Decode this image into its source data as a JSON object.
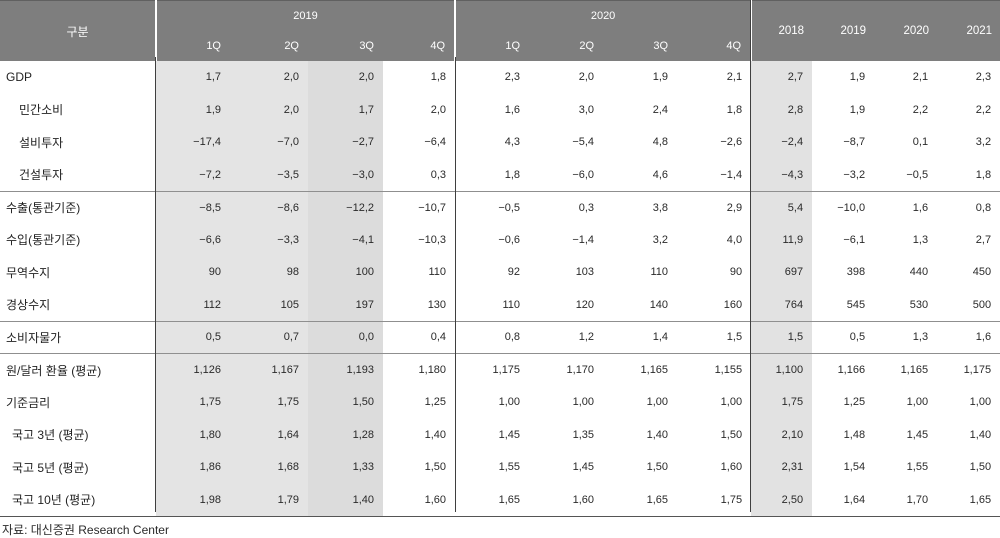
{
  "chart_data": {
    "type": "table",
    "header": {
      "corner": "구분",
      "group_2019": "2019",
      "group_2020": "2020",
      "quarters_2019": [
        "1Q",
        "2Q",
        "3Q",
        "4Q"
      ],
      "quarters_2020": [
        "1Q",
        "2Q",
        "3Q",
        "4Q"
      ],
      "annual_years": [
        "2018",
        "2019",
        "2020",
        "2021"
      ]
    },
    "rows": [
      {
        "label": "GDP",
        "indent": 0,
        "section_end": false,
        "q2019": [
          "1,7",
          "2,0",
          "2,0",
          "1,8"
        ],
        "q2020": [
          "2,3",
          "2,0",
          "1,9",
          "2,1"
        ],
        "annual": [
          "2,7",
          "1,9",
          "2,1",
          "2,3"
        ]
      },
      {
        "label": "민간소비",
        "indent": 1,
        "section_end": false,
        "q2019": [
          "1,9",
          "2,0",
          "1,7",
          "2,0"
        ],
        "q2020": [
          "1,6",
          "3,0",
          "2,4",
          "1,8"
        ],
        "annual": [
          "2,8",
          "1,9",
          "2,2",
          "2,2"
        ]
      },
      {
        "label": "설비투자",
        "indent": 1,
        "section_end": false,
        "q2019": [
          "−17,4",
          "−7,0",
          "−2,7",
          "−6,4"
        ],
        "q2020": [
          "4,3",
          "−5,4",
          "4,8",
          "−2,6"
        ],
        "annual": [
          "−2,4",
          "−8,7",
          "0,1",
          "3,2"
        ]
      },
      {
        "label": "건설투자",
        "indent": 1,
        "section_end": true,
        "q2019": [
          "−7,2",
          "−3,5",
          "−3,0",
          "0,3"
        ],
        "q2020": [
          "1,8",
          "−6,0",
          "4,6",
          "−1,4"
        ],
        "annual": [
          "−4,3",
          "−3,2",
          "−0,5",
          "1,8"
        ]
      },
      {
        "label": "수출(통관기준)",
        "indent": 0,
        "section_end": false,
        "q2019": [
          "−8,5",
          "−8,6",
          "−12,2",
          "−10,7"
        ],
        "q2020": [
          "−0,5",
          "0,3",
          "3,8",
          "2,9"
        ],
        "annual": [
          "5,4",
          "−10,0",
          "1,6",
          "0,8"
        ]
      },
      {
        "label": "수입(통관기준)",
        "indent": 0,
        "section_end": false,
        "q2019": [
          "−6,6",
          "−3,3",
          "−4,1",
          "−10,3"
        ],
        "q2020": [
          "−0,6",
          "−1,4",
          "3,2",
          "4,0"
        ],
        "annual": [
          "11,9",
          "−6,1",
          "1,3",
          "2,7"
        ]
      },
      {
        "label": "무역수지",
        "indent": 0,
        "section_end": false,
        "q2019": [
          "90",
          "98",
          "100",
          "110"
        ],
        "q2020": [
          "92",
          "103",
          "110",
          "90"
        ],
        "annual": [
          "697",
          "398",
          "440",
          "450"
        ]
      },
      {
        "label": "경상수지",
        "indent": 0,
        "section_end": true,
        "q2019": [
          "112",
          "105",
          "197",
          "130"
        ],
        "q2020": [
          "110",
          "120",
          "140",
          "160"
        ],
        "annual": [
          "764",
          "545",
          "530",
          "500"
        ]
      },
      {
        "label": "소비자물가",
        "indent": 0,
        "section_end": true,
        "q2019": [
          "0,5",
          "0,7",
          "0,0",
          "0,4"
        ],
        "q2020": [
          "0,8",
          "1,2",
          "1,4",
          "1,5"
        ],
        "annual": [
          "1,5",
          "0,5",
          "1,3",
          "1,6"
        ]
      },
      {
        "label": "원/달러 환율 (평균)",
        "indent": 0,
        "section_end": false,
        "q2019": [
          "1,126",
          "1,167",
          "1,193",
          "1,180"
        ],
        "q2020": [
          "1,175",
          "1,170",
          "1,165",
          "1,155"
        ],
        "annual": [
          "1,100",
          "1,166",
          "1,165",
          "1,175"
        ]
      },
      {
        "label": "기준금리",
        "indent": 0,
        "section_end": false,
        "q2019": [
          "1,75",
          "1,75",
          "1,50",
          "1,25"
        ],
        "q2020": [
          "1,00",
          "1,00",
          "1,00",
          "1,00"
        ],
        "annual": [
          "1,75",
          "1,25",
          "1,00",
          "1,00"
        ]
      },
      {
        "label": "국고 3년 (평균)",
        "indent": 2,
        "section_end": false,
        "q2019": [
          "1,80",
          "1,64",
          "1,28",
          "1,40"
        ],
        "q2020": [
          "1,45",
          "1,35",
          "1,40",
          "1,50"
        ],
        "annual": [
          "2,10",
          "1,48",
          "1,45",
          "1,40"
        ]
      },
      {
        "label": "국고 5년 (평균)",
        "indent": 2,
        "section_end": false,
        "q2019": [
          "1,86",
          "1,68",
          "1,33",
          "1,50"
        ],
        "q2020": [
          "1,55",
          "1,45",
          "1,50",
          "1,60"
        ],
        "annual": [
          "2,31",
          "1,54",
          "1,55",
          "1,50"
        ]
      },
      {
        "label": "국고 10년 (평균)",
        "indent": 2,
        "section_end": false,
        "q2019": [
          "1,98",
          "1,79",
          "1,40",
          "1,60"
        ],
        "q2020": [
          "1,65",
          "1,60",
          "1,65",
          "1,75"
        ],
        "annual": [
          "2,50",
          "1,64",
          "1,70",
          "1,65"
        ]
      }
    ],
    "source_note": "자료: 대신증권 Research Center"
  },
  "colors": {
    "header_bg": "#7e7e7e",
    "header_text": "#ffffff",
    "shade_q1_q2": "#e4e4e4",
    "shade_q3": "#dcdcdc",
    "shade_2018": "#e2e2e2",
    "divider_line": "#8f8f8f"
  }
}
